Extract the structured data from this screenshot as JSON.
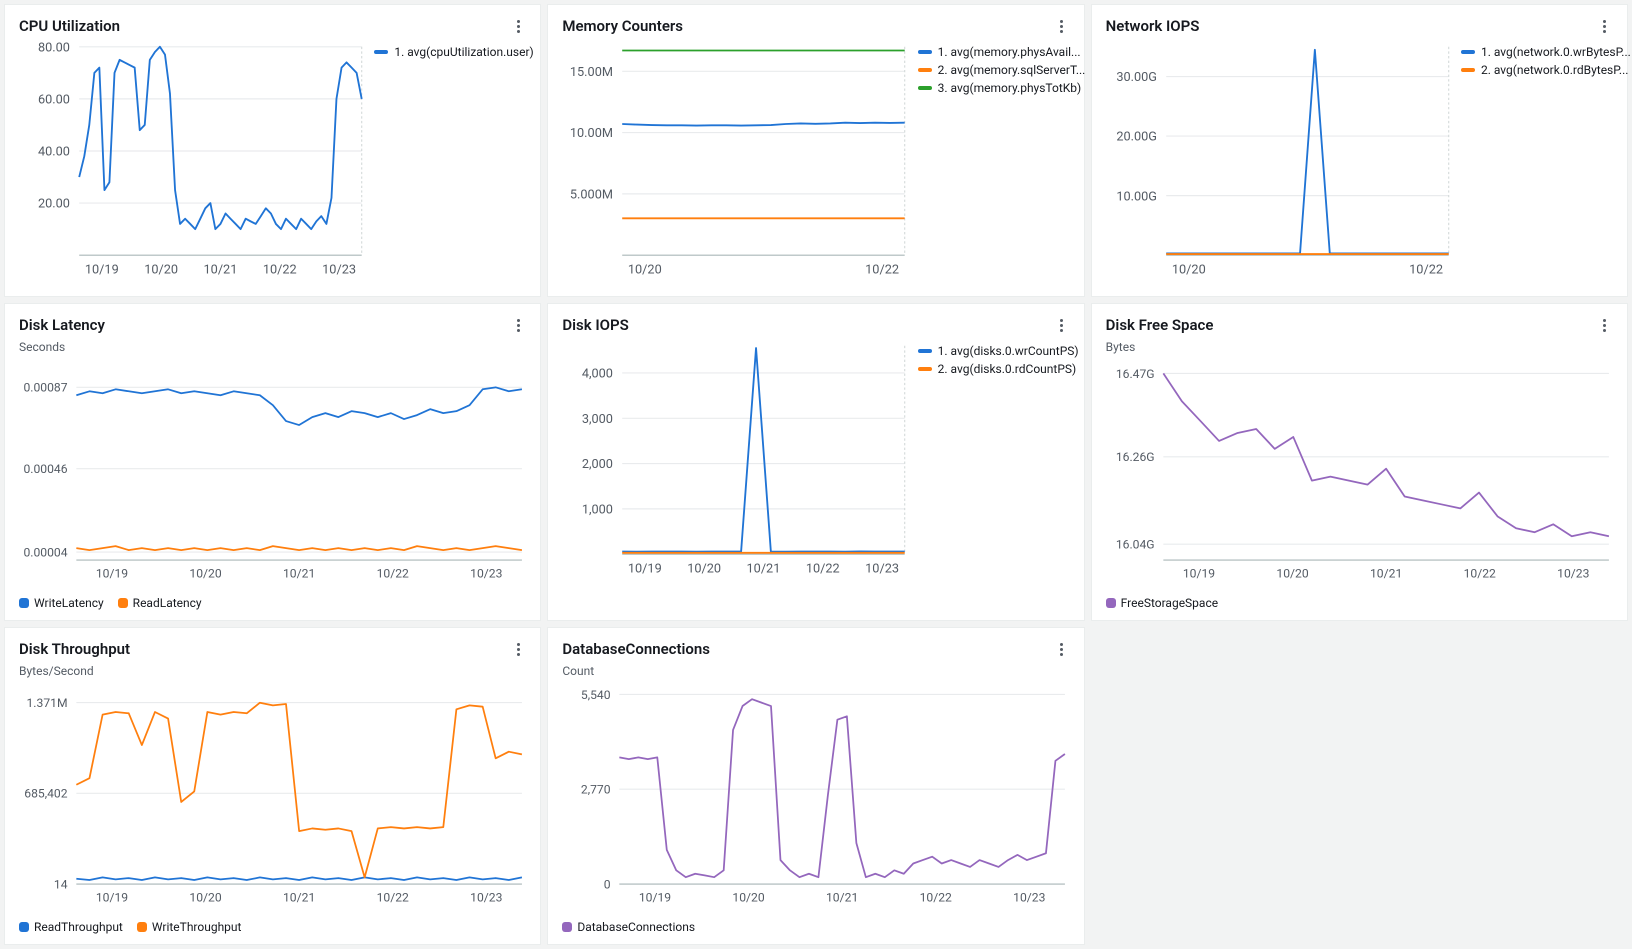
{
  "background_color": "#f2f3f3",
  "panel_background": "#ffffff",
  "panel_border": "#eaeded",
  "axis_text_color": "#545b64",
  "grid_color": "#e9ebed",
  "baseline_color": "#aab7b8",
  "series_colors": {
    "blue": "#2074d5",
    "orange": "#ff7f0e",
    "green": "#2ca02c",
    "purple": "#9467bd"
  },
  "panels": {
    "cpu": {
      "title": "CPU Utilization",
      "type": "line",
      "ylim": [
        0,
        80
      ],
      "yticks": [
        20,
        40,
        60,
        80
      ],
      "ytick_labels": [
        "20.00",
        "40.00",
        "60.00",
        "80.00"
      ],
      "xtick_labels": [
        "10/19",
        "10/20",
        "10/21",
        "10/22",
        "10/23"
      ],
      "legend_position": "side",
      "series": [
        {
          "label": "1. avg(cpuUtilization.user)",
          "color": "#2074d5",
          "data": [
            30,
            38,
            50,
            70,
            72,
            25,
            28,
            70,
            75,
            74,
            73,
            72,
            48,
            50,
            75,
            78,
            80,
            77,
            62,
            25,
            12,
            14,
            12,
            10,
            14,
            18,
            20,
            10,
            12,
            16,
            14,
            12,
            10,
            14,
            13,
            12,
            15,
            18,
            16,
            12,
            10,
            14,
            12,
            10,
            14,
            12,
            10,
            13,
            15,
            12,
            22,
            60,
            72,
            74,
            72,
            70,
            60
          ]
        }
      ]
    },
    "memory": {
      "title": "Memory Counters",
      "type": "line",
      "ylim": [
        0,
        17000000
      ],
      "yticks": [
        5000000,
        10000000,
        15000000
      ],
      "ytick_labels": [
        "5.000M",
        "10.00M",
        "15.00M"
      ],
      "xtick_labels": [
        "10/20",
        "10/22"
      ],
      "legend_position": "side",
      "series": [
        {
          "label": "1. avg(memory.physAvail...",
          "color": "#2074d5",
          "data": [
            10700000,
            10650000,
            10620000,
            10600000,
            10600000,
            10580000,
            10600000,
            10600000,
            10580000,
            10600000,
            10620000,
            10700000,
            10750000,
            10720000,
            10750000,
            10800000,
            10780000,
            10800000,
            10790000,
            10800000
          ]
        },
        {
          "label": "2. avg(memory.sqlServerT...",
          "color": "#ff7f0e",
          "data": [
            3000000,
            3000000,
            3000000,
            3000000,
            3000000,
            3000000,
            3000000,
            3000000,
            3000000,
            3000000,
            3000000,
            3000000,
            3000000,
            3000000,
            3000000,
            3000000,
            3000000,
            3000000,
            3000000,
            3000000
          ]
        },
        {
          "label": "3. avg(memory.physTotKb)",
          "color": "#2ca02c",
          "data": [
            16700000,
            16700000,
            16700000,
            16700000,
            16700000,
            16700000,
            16700000,
            16700000,
            16700000,
            16700000,
            16700000,
            16700000,
            16700000,
            16700000,
            16700000,
            16700000,
            16700000,
            16700000,
            16700000,
            16700000
          ]
        }
      ]
    },
    "network": {
      "title": "Network IOPS",
      "type": "line",
      "ylim": [
        0,
        35000000000
      ],
      "yticks": [
        10000000000,
        20000000000,
        30000000000
      ],
      "ytick_labels": [
        "10.00G",
        "20.00G",
        "30.00G"
      ],
      "xtick_labels": [
        "10/20",
        "10/22"
      ],
      "legend_position": "side",
      "series": [
        {
          "label": "1. avg(network.0.wrBytesP...",
          "color": "#2074d5",
          "data": [
            300000000,
            300000000,
            300000000,
            300000000,
            300000000,
            300000000,
            300000000,
            300000000,
            300000000,
            300000000,
            34500000000,
            300000000,
            300000000,
            300000000,
            300000000,
            300000000,
            300000000,
            300000000,
            300000000,
            300000000
          ]
        },
        {
          "label": "2. avg(network.0.rdBytesP...",
          "color": "#ff7f0e",
          "data": [
            200000000,
            200000000,
            200000000,
            200000000,
            200000000,
            200000000,
            200000000,
            200000000,
            200000000,
            200000000,
            200000000,
            200000000,
            200000000,
            200000000,
            200000000,
            200000000,
            200000000,
            200000000,
            200000000,
            200000000
          ]
        }
      ]
    },
    "latency": {
      "title": "Disk Latency",
      "unit": "Seconds",
      "type": "line",
      "ylim": [
        0,
        0.001
      ],
      "yticks": [
        4e-05,
        0.00046,
        0.00087
      ],
      "ytick_labels": [
        "0.00004",
        "0.00046",
        "0.00087"
      ],
      "xtick_labels": [
        "10/19",
        "10/20",
        "10/21",
        "10/22",
        "10/23"
      ],
      "legend_position": "bottom",
      "series": [
        {
          "label": "WriteLatency",
          "color": "#2074d5",
          "data": [
            0.00083,
            0.00085,
            0.00084,
            0.00086,
            0.00085,
            0.00084,
            0.00085,
            0.00086,
            0.00084,
            0.00085,
            0.00084,
            0.00083,
            0.00085,
            0.00084,
            0.00083,
            0.00078,
            0.0007,
            0.00068,
            0.00072,
            0.00074,
            0.00072,
            0.00075,
            0.00074,
            0.00072,
            0.00074,
            0.00071,
            0.00073,
            0.00076,
            0.00074,
            0.00075,
            0.00078,
            0.00086,
            0.00087,
            0.00085,
            0.00086
          ]
        },
        {
          "label": "ReadLatency",
          "color": "#ff7f0e",
          "data": [
            6e-05,
            5e-05,
            6e-05,
            7e-05,
            5e-05,
            6e-05,
            5e-05,
            6e-05,
            5e-05,
            6e-05,
            5e-05,
            6e-05,
            5e-05,
            6e-05,
            5e-05,
            7e-05,
            6e-05,
            5e-05,
            6e-05,
            5e-05,
            6e-05,
            5e-05,
            6e-05,
            5e-05,
            6e-05,
            5e-05,
            7e-05,
            6e-05,
            5e-05,
            6e-05,
            5e-05,
            6e-05,
            7e-05,
            6e-05,
            5e-05
          ]
        }
      ]
    },
    "diskiops": {
      "title": "Disk IOPS",
      "type": "line",
      "ylim": [
        0,
        4600
      ],
      "yticks": [
        1000,
        2000,
        3000,
        4000
      ],
      "ytick_labels": [
        "1,000",
        "2,000",
        "3,000",
        "4,000"
      ],
      "xtick_labels": [
        "10/19",
        "10/20",
        "10/21",
        "10/22",
        "10/23"
      ],
      "legend_position": "side",
      "series": [
        {
          "label": "1. avg(disks.0.wrCountPS)",
          "color": "#2074d5",
          "data": [
            60,
            55,
            60,
            58,
            60,
            55,
            60,
            58,
            60,
            4550,
            60,
            55,
            60,
            58,
            60,
            55,
            62,
            60,
            58,
            60
          ]
        },
        {
          "label": "2. avg(disks.0.rdCountPS)",
          "color": "#ff7f0e",
          "data": [
            30,
            30,
            30,
            30,
            30,
            30,
            30,
            30,
            30,
            30,
            30,
            30,
            30,
            30,
            30,
            30,
            30,
            30,
            30,
            30
          ]
        }
      ]
    },
    "freespace": {
      "title": "Disk Free Space",
      "unit": "Bytes",
      "type": "line",
      "ylim": [
        16000000000,
        16500000000
      ],
      "yticks": [
        16040000000,
        16260000000,
        16470000000
      ],
      "ytick_labels": [
        "16.04G",
        "16.26G",
        "16.47G"
      ],
      "xtick_labels": [
        "10/19",
        "10/20",
        "10/21",
        "10/22",
        "10/23"
      ],
      "legend_position": "bottom",
      "series": [
        {
          "label": "FreeStorageSpace",
          "color": "#9467bd",
          "data": [
            16470000000,
            16400000000,
            16350000000,
            16300000000,
            16320000000,
            16330000000,
            16280000000,
            16310000000,
            16200000000,
            16210000000,
            16200000000,
            16190000000,
            16230000000,
            16160000000,
            16150000000,
            16140000000,
            16130000000,
            16170000000,
            16110000000,
            16080000000,
            16070000000,
            16090000000,
            16060000000,
            16070000000,
            16060000000
          ]
        }
      ]
    },
    "throughput": {
      "title": "Disk Throughput",
      "unit": "Bytes/Second",
      "type": "line",
      "ylim": [
        0,
        1500000
      ],
      "yticks": [
        14,
        685402,
        1371000
      ],
      "ytick_labels": [
        "14",
        "685,402",
        "1.371M"
      ],
      "xtick_labels": [
        "10/19",
        "10/20",
        "10/21",
        "10/22",
        "10/23"
      ],
      "legend_position": "bottom",
      "series": [
        {
          "label": "ReadThroughput",
          "color": "#2074d5",
          "data": [
            40000,
            30000,
            50000,
            35000,
            45000,
            30000,
            50000,
            35000,
            45000,
            30000,
            50000,
            35000,
            45000,
            30000,
            50000,
            35000,
            45000,
            30000,
            50000,
            35000,
            45000,
            30000,
            50000,
            35000,
            45000,
            30000,
            50000,
            35000,
            45000,
            30000,
            50000,
            35000,
            45000,
            30000,
            50000
          ]
        },
        {
          "label": "WriteThroughput",
          "color": "#ff7f0e",
          "data": [
            750000,
            800000,
            1280000,
            1300000,
            1290000,
            1050000,
            1300000,
            1250000,
            620000,
            700000,
            1300000,
            1280000,
            1300000,
            1290000,
            1370000,
            1350000,
            1360000,
            400000,
            420000,
            410000,
            420000,
            400000,
            50000,
            420000,
            430000,
            420000,
            430000,
            420000,
            430000,
            1320000,
            1350000,
            1340000,
            950000,
            1000000,
            980000
          ]
        }
      ]
    },
    "connections": {
      "title": "DatabaseConnections",
      "unit": "Count",
      "type": "line",
      "ylim": [
        0,
        5800
      ],
      "yticks": [
        0,
        2770,
        5540
      ],
      "ytick_labels": [
        "0",
        "2,770",
        "5,540"
      ],
      "xtick_labels": [
        "10/19",
        "10/20",
        "10/21",
        "10/22",
        "10/23"
      ],
      "legend_position": "bottom",
      "series": [
        {
          "label": "DatabaseConnections",
          "color": "#9467bd",
          "data": [
            3700,
            3650,
            3700,
            3650,
            3700,
            1000,
            400,
            200,
            300,
            250,
            200,
            400,
            4500,
            5200,
            5400,
            5300,
            5200,
            700,
            400,
            200,
            300,
            200,
            2600,
            4800,
            4900,
            1200,
            200,
            300,
            200,
            400,
            300,
            600,
            700,
            800,
            600,
            700,
            600,
            500,
            700,
            600,
            500,
            700,
            850,
            700,
            800,
            900,
            3600,
            3800
          ]
        }
      ]
    }
  }
}
